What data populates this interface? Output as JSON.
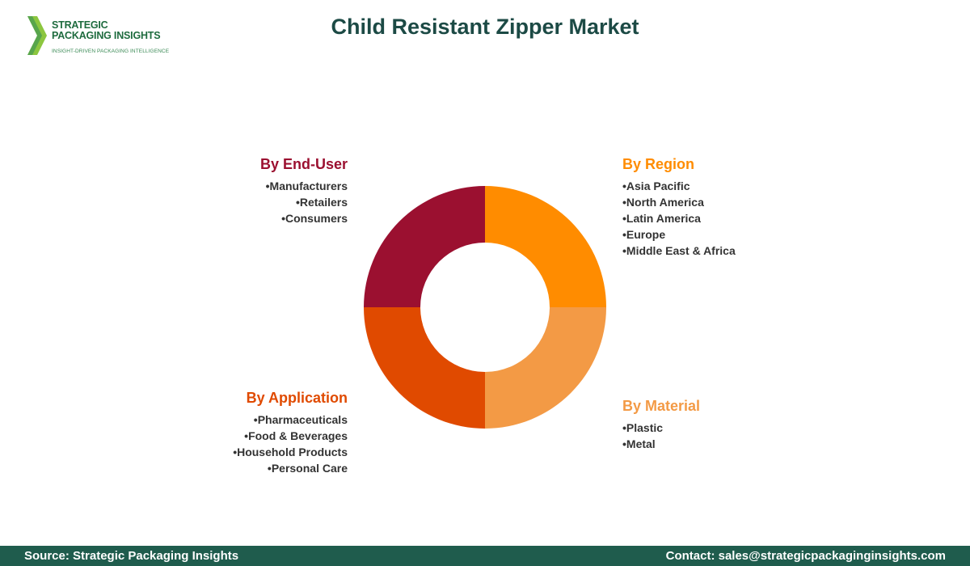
{
  "logo": {
    "line1": "STRATEGIC",
    "line2": "PACKAGING INSIGHTS",
    "tagline": "INSIGHT-DRIVEN PACKAGING INTELLIGENCE"
  },
  "title": "Child Resistant Zipper Market",
  "segments": {
    "end_user": {
      "title": "By End-User",
      "color": "#9b1030",
      "items": [
        "Manufacturers",
        "Retailers",
        "Consumers"
      ]
    },
    "region": {
      "title": "By Region",
      "color": "#ff8c00",
      "items": [
        "Asia Pacific",
        "North America",
        "Latin America",
        "Europe",
        "Middle East & Africa"
      ]
    },
    "application": {
      "title": "By Application",
      "color": "#e04a00",
      "items": [
        "Pharmaceuticals",
        "Food & Beverages",
        "Household Products",
        "Personal Care"
      ]
    },
    "material": {
      "title": "By Material",
      "color": "#f39a45",
      "items": [
        "Plastic",
        "Metal"
      ]
    }
  },
  "donut": {
    "order": [
      "region",
      "material",
      "application",
      "end_user"
    ],
    "shares": [
      25,
      25,
      25,
      25
    ]
  },
  "footer": {
    "source": "Source: Strategic Packaging Insights",
    "contact": "Contact: sales@strategicpackaginginsights.com"
  }
}
